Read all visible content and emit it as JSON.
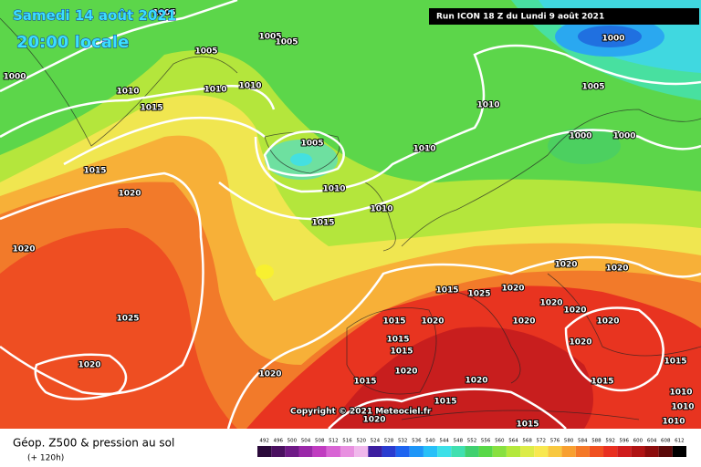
{
  "header": {
    "date": "Samedi 14 août 2021",
    "time": "20:00 locale",
    "run": "Run ICON 18 Z du Lundi 9 août 2021"
  },
  "copyright": "Copyright © 2021 Meteociel.fr",
  "footer": {
    "title": "Géop. Z500 & pression au sol",
    "subtitle": "(+ 120h)"
  },
  "isobar_labels": [
    "1005",
    "1005",
    "1005",
    "1005",
    "1000",
    "1010",
    "1010",
    "1010",
    "1015",
    "1015",
    "1020",
    "1005",
    "1010",
    "1010",
    "1010",
    "1005",
    "1000",
    "1000",
    "1000",
    "1015",
    "1010",
    "1020",
    "1025",
    "1020",
    "1020",
    "1015",
    "1025",
    "1020",
    "1020",
    "1020",
    "1020",
    "1020",
    "1020",
    "1015",
    "1020",
    "1020",
    "1015",
    "1015",
    "1020",
    "1015",
    "1020",
    "1015",
    "1015",
    "1020",
    "1015",
    "1015",
    "1020",
    "1010",
    "1010",
    "1010"
  ],
  "legend": {
    "labels": [
      492,
      496,
      500,
      504,
      508,
      512,
      516,
      520,
      524,
      528,
      532,
      536,
      540,
      544,
      548,
      552,
      556,
      560,
      564,
      568,
      572,
      576,
      580,
      584,
      588,
      592,
      596,
      600,
      604,
      608,
      612
    ],
    "colors": [
      "#2a0a3a",
      "#4a1060",
      "#6e1a86",
      "#9a28a8",
      "#c03cc0",
      "#d864d4",
      "#e890e0",
      "#f0b8ec",
      "#3c1ea0",
      "#2a3cd0",
      "#1e64f0",
      "#1e96f8",
      "#28c0f8",
      "#3ce0e8",
      "#40e0b0",
      "#40d070",
      "#58d848",
      "#88e040",
      "#b4e83c",
      "#dcec48",
      "#f8e850",
      "#f8c840",
      "#f8a030",
      "#f47828",
      "#f05020",
      "#e83020",
      "#d01c1c",
      "#b01414",
      "#8c0c0c",
      "#5a0808",
      "#000000"
    ]
  }
}
